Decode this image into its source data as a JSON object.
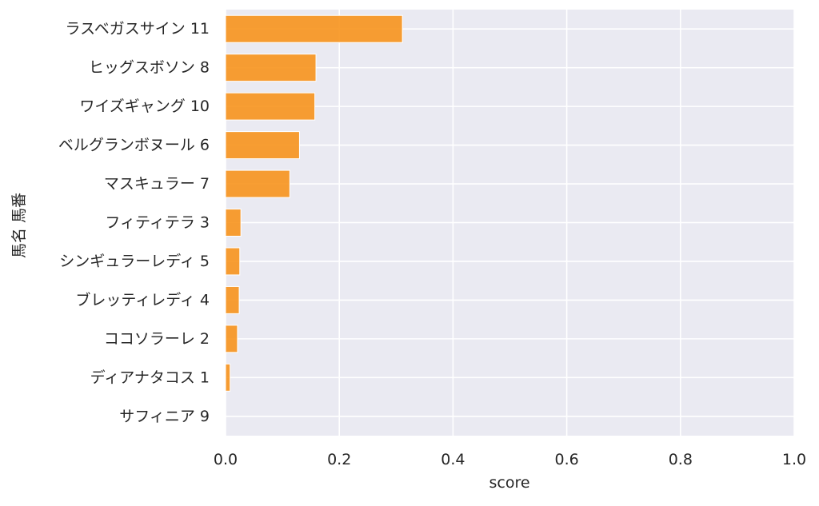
{
  "chart_data": {
    "type": "bar",
    "orientation": "horizontal",
    "categories": [
      "ラスベガスサイン 11",
      "ヒッグスボソン 8",
      "ワイズギャング 10",
      "ベルグランボヌール 6",
      "マスキュラー 7",
      "フィティテラ 3",
      "シンギュラーレディ 5",
      "ブレッティレディ 4",
      "ココソラーレ 2",
      "ディアナタコス 1",
      "サフィニア 9"
    ],
    "values": [
      0.311,
      0.159,
      0.157,
      0.13,
      0.113,
      0.027,
      0.025,
      0.024,
      0.021,
      0.008,
      0.0
    ],
    "xlabel": "score",
    "ylabel": "馬名 馬番",
    "xlim": [
      0.0,
      1.0
    ],
    "xticks": [
      "0.0",
      "0.2",
      "0.4",
      "0.6",
      "0.8",
      "1.0"
    ],
    "grid": true,
    "bar_color": "#f7941d",
    "background_color": "#eaeaf2",
    "grid_color": "#ffffff"
  }
}
